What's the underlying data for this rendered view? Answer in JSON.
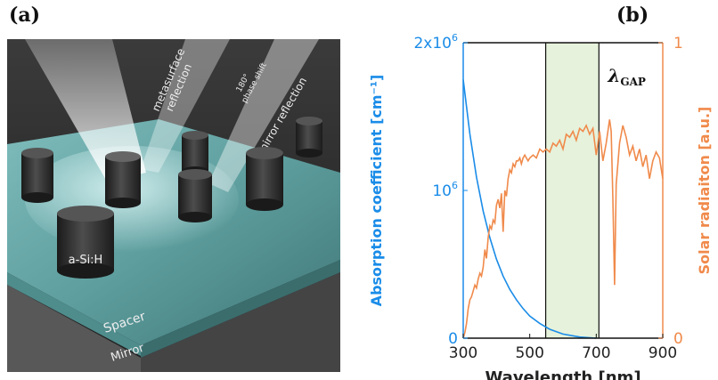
{
  "panel_a": {
    "label": "(a)",
    "beam_labels": {
      "metasurface": [
        "metasurface",
        "reflection"
      ],
      "phase": [
        "180°",
        "phase shift"
      ],
      "mirror": "mirror reflection"
    },
    "pillar_label": "a-Si:H",
    "spacer_label": "Spacer",
    "mirror_label": "Mirror"
  },
  "panel_b": {
    "label": "(b)",
    "band_label_main": "λ",
    "band_label_sub": "GAP"
  },
  "chart_data": {
    "type": "line",
    "xlabel": "Wavelength  [nm]",
    "ylabel_left": "Absorption coefficient  [cm⁻¹]",
    "ylabel_right": "Solar radiaiton  [a.u.]",
    "xlim": [
      300,
      900
    ],
    "xticks": [
      "300",
      "500",
      "700",
      "900"
    ],
    "ylim_left": [
      0,
      2000000
    ],
    "yticks_left": [
      {
        "value": 0,
        "base": "0",
        "exp": ""
      },
      {
        "value": 1000000,
        "base": "10",
        "exp": "6"
      },
      {
        "value": 2000000,
        "base": "2x10",
        "exp": "6"
      }
    ],
    "ylim_right": [
      0,
      1
    ],
    "yticks_right": [
      "0",
      "1"
    ],
    "highlight_band": [
      548,
      708
    ],
    "vlines": [
      548,
      708
    ],
    "colors": {
      "absorption": "#1a8ce8",
      "solar": "#f08a4b",
      "band": "#e6f2db"
    },
    "series": [
      {
        "axis": "left",
        "x": [
          300,
          320,
          340,
          360,
          380,
          400,
          420,
          440,
          460,
          480,
          500,
          530,
          560,
          600,
          650,
          700
        ],
        "y": [
          1750000,
          1380000,
          1090000,
          860000,
          680000,
          535000,
          420000,
          330000,
          260000,
          200000,
          150000,
          100000,
          60000,
          28000,
          8000,
          0
        ]
      },
      {
        "axis": "right",
        "x": [
          300,
          305,
          310,
          315,
          320,
          325,
          330,
          335,
          340,
          345,
          350,
          355,
          360,
          365,
          370,
          375,
          380,
          385,
          390,
          395,
          400,
          405,
          410,
          415,
          420,
          425,
          430,
          435,
          440,
          445,
          450,
          455,
          460,
          465,
          470,
          475,
          480,
          485,
          490,
          495,
          500,
          510,
          520,
          530,
          540,
          550,
          560,
          570,
          580,
          590,
          600,
          610,
          620,
          630,
          640,
          650,
          660,
          670,
          680,
          690,
          700,
          710,
          720,
          730,
          740,
          745,
          750,
          755,
          760,
          770,
          780,
          790,
          800,
          810,
          820,
          830,
          840,
          850,
          860,
          870,
          880,
          890,
          900
        ],
        "y": [
          0.0,
          0.02,
          0.05,
          0.1,
          0.13,
          0.14,
          0.16,
          0.18,
          0.17,
          0.2,
          0.22,
          0.21,
          0.24,
          0.3,
          0.27,
          0.34,
          0.38,
          0.37,
          0.4,
          0.39,
          0.45,
          0.47,
          0.44,
          0.49,
          0.36,
          0.5,
          0.48,
          0.54,
          0.57,
          0.56,
          0.59,
          0.58,
          0.6,
          0.6,
          0.61,
          0.59,
          0.61,
          0.62,
          0.61,
          0.6,
          0.61,
          0.62,
          0.61,
          0.64,
          0.63,
          0.64,
          0.63,
          0.66,
          0.65,
          0.67,
          0.64,
          0.69,
          0.68,
          0.7,
          0.67,
          0.71,
          0.7,
          0.72,
          0.69,
          0.71,
          0.62,
          0.7,
          0.6,
          0.66,
          0.74,
          0.7,
          0.47,
          0.18,
          0.52,
          0.66,
          0.72,
          0.68,
          0.62,
          0.65,
          0.6,
          0.64,
          0.58,
          0.62,
          0.54,
          0.6,
          0.63,
          0.61,
          0.54
        ]
      }
    ]
  }
}
